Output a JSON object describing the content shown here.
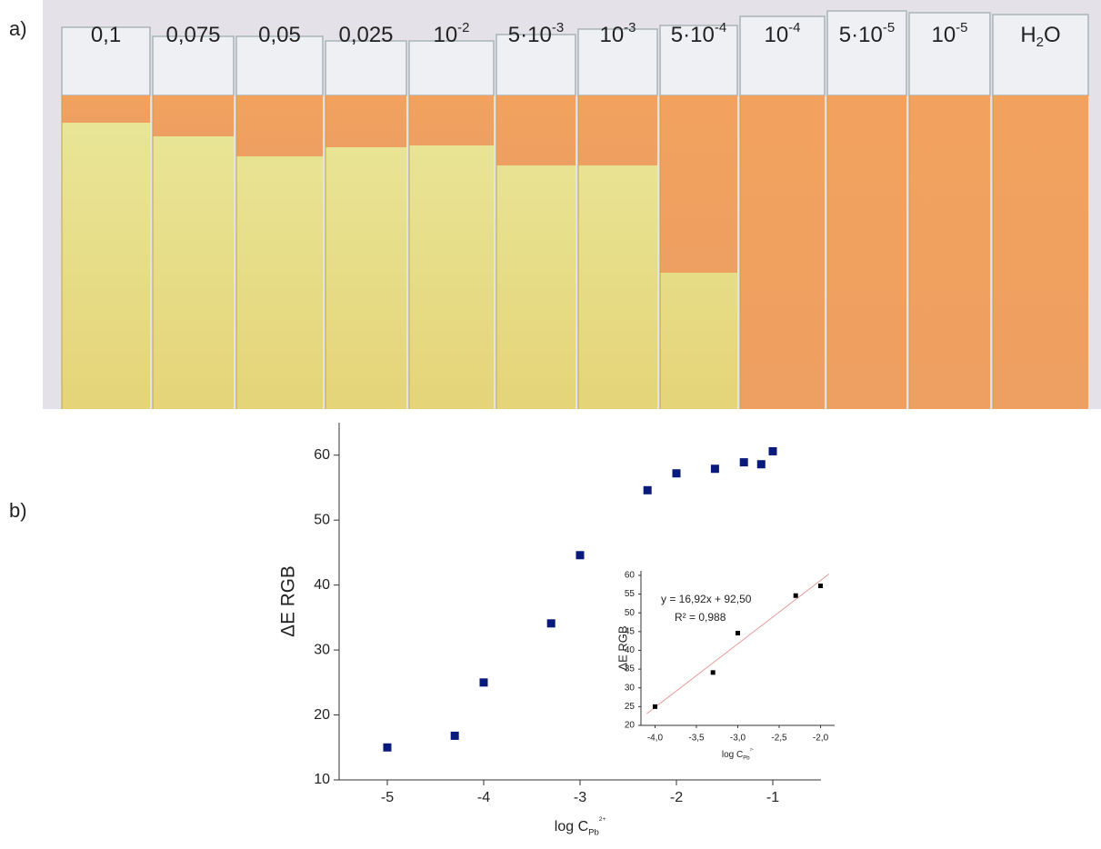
{
  "panel_labels": [
    "a)",
    "b)"
  ],
  "strip_labels": [
    {
      "text": "0,1"
    },
    {
      "text": "0,075"
    },
    {
      "text": "0,05"
    },
    {
      "text": "0,025"
    },
    {
      "text": "10",
      "sup": "-2"
    },
    {
      "text": "5·10",
      "sup": "-3"
    },
    {
      "text": "10",
      "sup": "-3"
    },
    {
      "text": "5·10",
      "sup": "-4"
    },
    {
      "text": "10",
      "sup": "-4"
    },
    {
      "text": "5·10",
      "sup": "-5"
    },
    {
      "text": "10",
      "sup": "-5"
    },
    {
      "text": "H",
      "sub": "2",
      "tail": "O"
    }
  ],
  "chart_data": [
    {
      "type": "scatter",
      "x_label": {
        "text": "log C",
        "sub": "Pb",
        "sup": "2+"
      },
      "y_label": "ΔE RGB",
      "x": [
        -5,
        -4.3,
        -4,
        -3.3,
        -3,
        -2.3,
        -2,
        -1.6,
        -1.3,
        -1.12,
        -1
      ],
      "values": [
        15,
        16.8,
        25,
        34.1,
        44.6,
        54.6,
        57.2,
        57.9,
        58.9,
        58.6,
        60.6
      ],
      "color": "#0a1a7a",
      "xlim": [
        -5.5,
        -0.5
      ],
      "ylim": [
        10,
        65
      ],
      "xticks": [
        -5,
        -4,
        -3,
        -2,
        -1
      ],
      "yticks": [
        10,
        20,
        30,
        40,
        50,
        60
      ]
    },
    {
      "type": "scatter",
      "x_label": {
        "text": "log C",
        "sub": "Pb",
        "sup": "2+"
      },
      "y_label": "ΔE RGB",
      "x": [
        -4,
        -3.3,
        -3,
        -2.3,
        -2
      ],
      "values": [
        25,
        34.1,
        44.6,
        54.6,
        57.2
      ],
      "color": "#000000",
      "xlim": [
        -4.17,
        -1.83
      ],
      "ylim": [
        20,
        61.2
      ],
      "xticks": [
        {
          "value": -4,
          "label": "-4,0"
        },
        {
          "value": -3.5,
          "label": "-3,5"
        },
        {
          "value": -3,
          "label": "-3,0"
        },
        {
          "value": -2.5,
          "label": "-2,5"
        },
        {
          "value": -2,
          "label": "-2,0"
        }
      ],
      "yticks": [
        20,
        25,
        30,
        35,
        40,
        45,
        50,
        55,
        60
      ],
      "annotations": [
        "y = 16,92x + 92,50",
        "R² = 0,988"
      ],
      "trendline": {
        "slope": 16.92,
        "intercept": 92.5,
        "color": "#e89a9a"
      }
    }
  ]
}
